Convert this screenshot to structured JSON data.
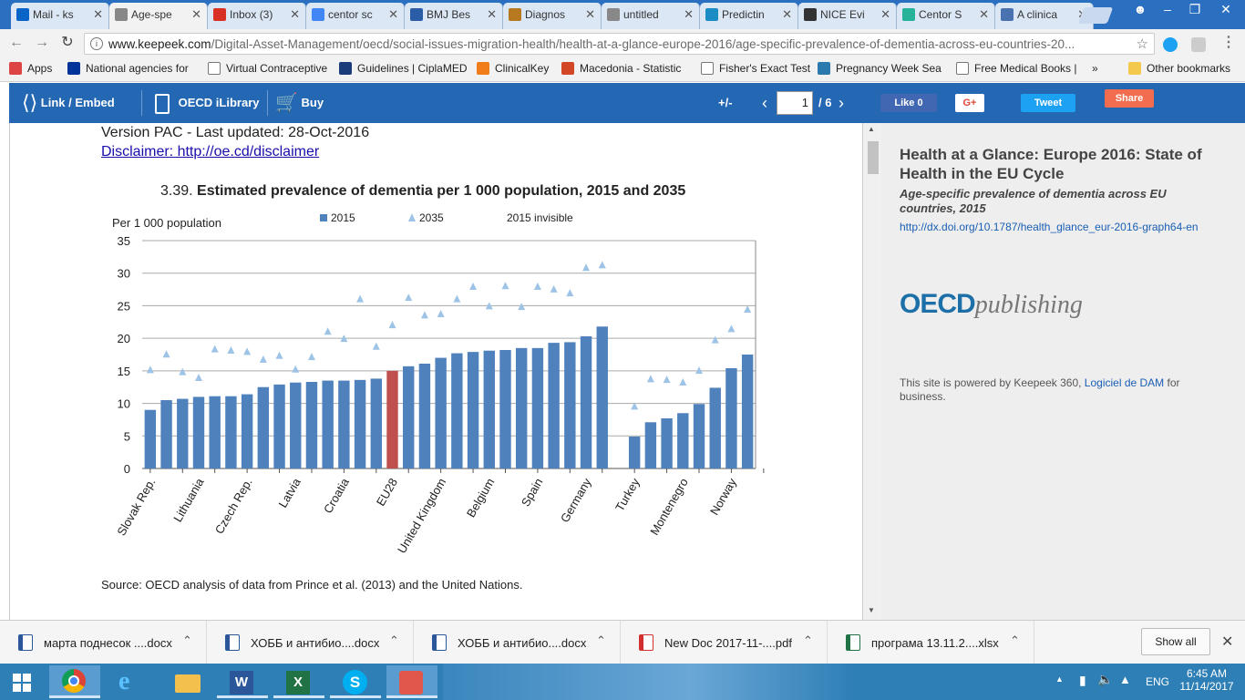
{
  "browser": {
    "tabs": [
      {
        "label": "Mail - ks",
        "favicon": "outlook-icon",
        "color": "#0a64c8"
      },
      {
        "label": "Age-spe",
        "favicon": "page-icon",
        "color": "#888888",
        "active": true
      },
      {
        "label": "Inbox (3)",
        "favicon": "gmail-icon",
        "color": "#d93025"
      },
      {
        "label": "centor sc",
        "favicon": "google-icon",
        "color": "#4285f4"
      },
      {
        "label": "BMJ Bes",
        "favicon": "bmj-icon",
        "color": "#2a5ca8"
      },
      {
        "label": "Diagnos",
        "favicon": "diagnos-icon",
        "color": "#b7791f"
      },
      {
        "label": "untitled",
        "favicon": "page-icon",
        "color": "#888888"
      },
      {
        "label": "Predictin",
        "favicon": "predictin-icon",
        "color": "#1b8cc4"
      },
      {
        "label": "NICE Evi",
        "favicon": "nice-icon",
        "color": "#333333"
      },
      {
        "label": "Centor S",
        "favicon": "plus-icon",
        "color": "#27b39b"
      },
      {
        "label": "A clinica",
        "favicon": "clinical-icon",
        "color": "#4a72b0"
      }
    ],
    "url_host": "www.keepeek.com",
    "url_path": "/Digital-Asset-Management/oecd/social-issues-migration-health/health-at-a-glance-europe-2016/age-specific-prevalence-of-dementia-across-eu-countries-20...",
    "bookmarks": [
      {
        "label": "Apps",
        "icon": "apps-icon",
        "color": "#d44"
      },
      {
        "label": "National agencies for",
        "icon": "eu-flag-icon",
        "color": "#003399"
      },
      {
        "label": "Virtual Contraceptive",
        "icon": "page-icon",
        "color": "#ffffff"
      },
      {
        "label": "Guidelines | CiplaMED",
        "icon": "ciplamed-icon",
        "color": "#1b3d7a"
      },
      {
        "label": "ClinicalKey",
        "icon": "clinicalkey-icon",
        "color": "#f07d1a"
      },
      {
        "label": "Macedonia - Statistic",
        "icon": "q-icon",
        "color": "#d24726"
      },
      {
        "label": "Fisher's Exact Test",
        "icon": "page-icon",
        "color": "#ffffff"
      },
      {
        "label": "Pregnancy Week Sea",
        "icon": "bl-icon",
        "color": "#2a7ab0"
      },
      {
        "label": "Free Medical Books |",
        "icon": "page-icon",
        "color": "#ffffff"
      }
    ],
    "bookmarks_more": "»",
    "other_bookmarks": "Other bookmarks"
  },
  "viewer": {
    "link_embed": "Link / Embed",
    "oecd_ilibrary": "OECD iLibrary",
    "buy": "Buy",
    "zoom": "+/-",
    "page_current": "1",
    "page_total": "/ 6",
    "like": "Like 0",
    "gplus": "G+",
    "tweet": "Tweet",
    "share": "Share"
  },
  "document": {
    "version": "Version PAC - Last updated: 28-Oct-2016",
    "disclaimer": "Disclaimer: http://oe.cd/disclaimer",
    "figure_number": "3.39.",
    "figure_title": "Estimated prevalence of dementia per 1 000 population, 2015 and 2035",
    "source": "Source: OECD analysis of data from Prince et al. (2013) and the United Nations."
  },
  "chart_data": {
    "type": "bar",
    "ylabel": "Per 1 000 population",
    "ylim": [
      0,
      35
    ],
    "yticks": [
      0,
      5,
      10,
      15,
      20,
      25,
      30,
      35
    ],
    "grid": true,
    "legend": [
      {
        "name": "2015",
        "marker": "square",
        "color": "#4f81bd"
      },
      {
        "name": "2035",
        "marker": "triangle",
        "color": "#9dc3e6"
      },
      {
        "name": "2015 invisible",
        "marker": "none",
        "color": ""
      }
    ],
    "highlight_color": "#c0504d",
    "labeled_categories": [
      {
        "label": "Slovak Rep.",
        "index": 0
      },
      {
        "label": "Lithuania",
        "index": 3
      },
      {
        "label": "Czech Rep.",
        "index": 6
      },
      {
        "label": "Latvia",
        "index": 9
      },
      {
        "label": "Croatia",
        "index": 12
      },
      {
        "label": "EU28",
        "index": 15
      },
      {
        "label": "United Kingdom",
        "index": 18
      },
      {
        "label": "Belgium",
        "index": 21
      },
      {
        "label": "Spain",
        "index": 24
      },
      {
        "label": "Germany",
        "index": 27
      },
      {
        "label": "Turkey",
        "index": 30
      },
      {
        "label": "Montenegro",
        "index": 33
      },
      {
        "label": "Norway",
        "index": 36
      }
    ],
    "series": [
      {
        "name": "2015",
        "values": [
          9.0,
          10.5,
          10.7,
          11.0,
          11.1,
          11.1,
          11.4,
          12.5,
          12.9,
          13.2,
          13.3,
          13.5,
          13.5,
          13.6,
          13.8,
          15.0,
          15.7,
          16.1,
          17.0,
          17.7,
          17.9,
          18.1,
          18.2,
          18.5,
          18.5,
          19.3,
          19.4,
          20.3,
          21.8,
          null,
          4.9,
          7.1,
          7.7,
          8.5,
          9.9,
          12.4,
          15.4,
          17.5
        ]
      },
      {
        "name": "2035",
        "values": [
          15.2,
          17.6,
          14.9,
          14.0,
          18.4,
          18.2,
          18.0,
          16.8,
          17.4,
          15.3,
          17.2,
          21.1,
          20.0,
          26.1,
          18.8,
          22.1,
          26.3,
          23.6,
          23.8,
          26.1,
          28.0,
          25.0,
          28.1,
          24.9,
          28.0,
          27.6,
          27.0,
          30.9,
          31.3,
          null,
          9.6,
          13.8,
          13.7,
          13.3,
          15.1,
          19.8,
          21.5,
          24.5
        ]
      }
    ]
  },
  "side": {
    "title": "Health at a Glance: Europe 2016: State of Health in the EU Cycle",
    "subtitle": "Age-specific prevalence of dementia across EU countries, 2015",
    "doi": "http://dx.doi.org/10.1787/health_glance_eur-2016-graph64-en",
    "logo_oecd": "OECD",
    "logo_publishing": "publishing",
    "powered_text": "This site is powered by Keepeek 360,",
    "powered_link": "Logiciel de DAM",
    "powered_tail": "for business."
  },
  "downloads": [
    {
      "name": "марта поднесок ....docx",
      "icon": "word-icon",
      "color": "#2b579a"
    },
    {
      "name": "ХОББ и антибио....docx",
      "icon": "word-icon",
      "color": "#2b579a"
    },
    {
      "name": "ХОББ и антибио....docx",
      "icon": "word-icon",
      "color": "#2b579a"
    },
    {
      "name": "New Doc 2017-11-....pdf",
      "icon": "pdf-icon",
      "color": "#d32f2f"
    },
    {
      "name": "програма 13.11.2....xlsx",
      "icon": "excel-icon",
      "color": "#217346"
    }
  ],
  "show_all": "Show all",
  "taskbar": {
    "lang": "ENG",
    "time": "6:45 AM",
    "date": "11/14/2017"
  }
}
